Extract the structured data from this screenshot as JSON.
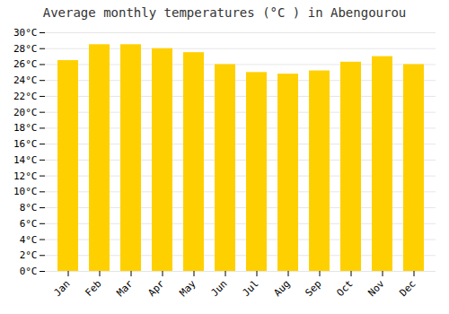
{
  "chart_data": {
    "type": "bar",
    "title": "Average monthly temperatures (°C ) in Abengourou",
    "categories": [
      "Jan",
      "Feb",
      "Mar",
      "Apr",
      "May",
      "Jun",
      "Jul",
      "Aug",
      "Sep",
      "Oct",
      "Nov",
      "Dec"
    ],
    "values": [
      26.5,
      28.5,
      28.5,
      28.0,
      27.5,
      26.0,
      25.0,
      24.8,
      25.2,
      26.3,
      27.0,
      26.0
    ],
    "color": "#FFD000",
    "ylim": [
      0,
      30
    ],
    "yticks": [
      {
        "value": 0,
        "label": "0°C"
      },
      {
        "value": 2,
        "label": "2°C"
      },
      {
        "value": 4,
        "label": "4°C"
      },
      {
        "value": 6,
        "label": "6°C"
      },
      {
        "value": 8,
        "label": "8°C"
      },
      {
        "value": 10,
        "label": "10°C"
      },
      {
        "value": 12,
        "label": "12°C"
      },
      {
        "value": 14,
        "label": "14°C"
      },
      {
        "value": 16,
        "label": "16°C"
      },
      {
        "value": 18,
        "label": "18°C"
      },
      {
        "value": 20,
        "label": "20°C"
      },
      {
        "value": 22,
        "label": "22°C"
      },
      {
        "value": 24,
        "label": "24°C"
      },
      {
        "value": 26,
        "label": "26°C"
      },
      {
        "value": 28,
        "label": "28°C"
      },
      {
        "value": 30,
        "label": "30°C"
      }
    ],
    "grid": true
  }
}
